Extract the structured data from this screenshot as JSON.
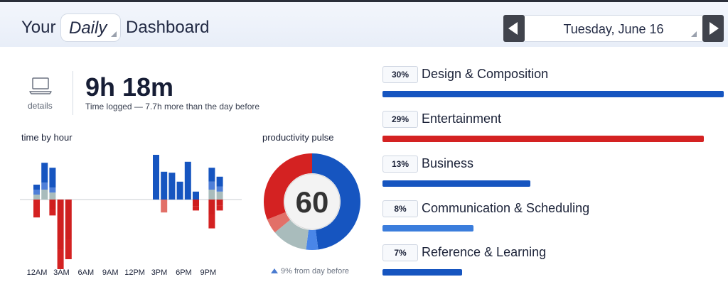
{
  "header": {
    "title_prefix": "Your",
    "period": "Daily",
    "title_suffix": "Dashboard",
    "date": "Tuesday, June 16"
  },
  "summary": {
    "details_label": "details",
    "time_logged": "9h 18m",
    "time_logged_caption": "Time logged — 7.7h more than the day before"
  },
  "time_by_hour": {
    "title": "time by hour",
    "tick_labels": [
      "12AM",
      "3AM",
      "6AM",
      "9AM",
      "12PM",
      "3PM",
      "6PM",
      "9PM"
    ]
  },
  "productivity_pulse": {
    "title": "productivity pulse",
    "score": "60",
    "change_text": "9% from day before"
  },
  "categories": [
    {
      "percent_label": "30%",
      "name": "Design & Composition",
      "fraction": 0.3,
      "color": "#1655c0"
    },
    {
      "percent_label": "29%",
      "name": "Entertainment",
      "fraction": 0.29,
      "color": "#d42222"
    },
    {
      "percent_label": "13%",
      "name": "Business",
      "fraction": 0.13,
      "color": "#1655c0"
    },
    {
      "percent_label": "8%",
      "name": "Communication & Scheduling",
      "fraction": 0.08,
      "color": "#3b7ddc"
    },
    {
      "percent_label": "7%",
      "name": "Reference & Learning",
      "fraction": 0.07,
      "color": "#1655c0"
    }
  ],
  "chart_data": [
    {
      "type": "bar",
      "title": "time by hour",
      "x": [
        0,
        1,
        2,
        3,
        4,
        5,
        6,
        7,
        8,
        9,
        10,
        11,
        12,
        13,
        14,
        15,
        16,
        17,
        18,
        19,
        20,
        21,
        22,
        23
      ],
      "tick_labels": [
        "12AM",
        "3AM",
        "6AM",
        "9AM",
        "12PM",
        "3PM",
        "6PM",
        "9PM"
      ],
      "series": [
        {
          "values": [
            0.05,
            0.2,
            0.2,
            0,
            0,
            0,
            0,
            0,
            0,
            0,
            0,
            0,
            0,
            0,
            0,
            0.45,
            0.28,
            0.27,
            0.18,
            0.38,
            0.08,
            0,
            0.14,
            0.1
          ]
        },
        {
          "values": [
            0.05,
            0.07,
            0.05,
            0,
            0,
            0,
            0,
            0,
            0,
            0,
            0,
            0,
            0,
            0,
            0,
            0,
            0,
            0,
            0,
            0,
            0,
            0,
            0.08,
            0.05
          ]
        },
        {
          "values": [
            0.05,
            0.1,
            0.07,
            0,
            0,
            0,
            0,
            0,
            0,
            0,
            0,
            0,
            0,
            0,
            0,
            0,
            0,
            0,
            0,
            0,
            0,
            0,
            0.1,
            0.08
          ]
        },
        {
          "values": [
            0,
            0,
            0,
            0,
            0,
            0,
            0,
            0,
            0,
            0,
            0,
            0,
            0,
            0,
            0,
            0,
            0.13,
            0,
            0,
            0,
            0,
            0,
            0,
            0
          ]
        },
        {
          "values": [
            0,
            0,
            0.1,
            0.5,
            0.4,
            0,
            0,
            0,
            0,
            0,
            0,
            0,
            0,
            0,
            0,
            0,
            0,
            0,
            0,
            0,
            0.07,
            0,
            0.15,
            0.06
          ]
        },
        {
          "values": [
            0.18,
            0,
            0.06,
            0.2,
            0.2,
            0,
            0,
            0,
            0,
            0,
            0,
            0,
            0,
            0,
            0,
            0,
            0,
            0,
            0,
            0,
            0.04,
            0,
            0.14,
            0.05
          ]
        }
      ],
      "colors": [
        "#1655c0",
        "#4f7fd8",
        "#a9bcbc",
        "#e27068",
        "#cf1f1f",
        "#d42222"
      ]
    },
    {
      "type": "pie",
      "title": "productivity pulse",
      "values": [
        0.48,
        0.04,
        0.12,
        0.05,
        0.31
      ],
      "colors": [
        "#1655c0",
        "#4a86e8",
        "#a9bcbc",
        "#e27068",
        "#d42222"
      ],
      "center_label": "60"
    }
  ]
}
